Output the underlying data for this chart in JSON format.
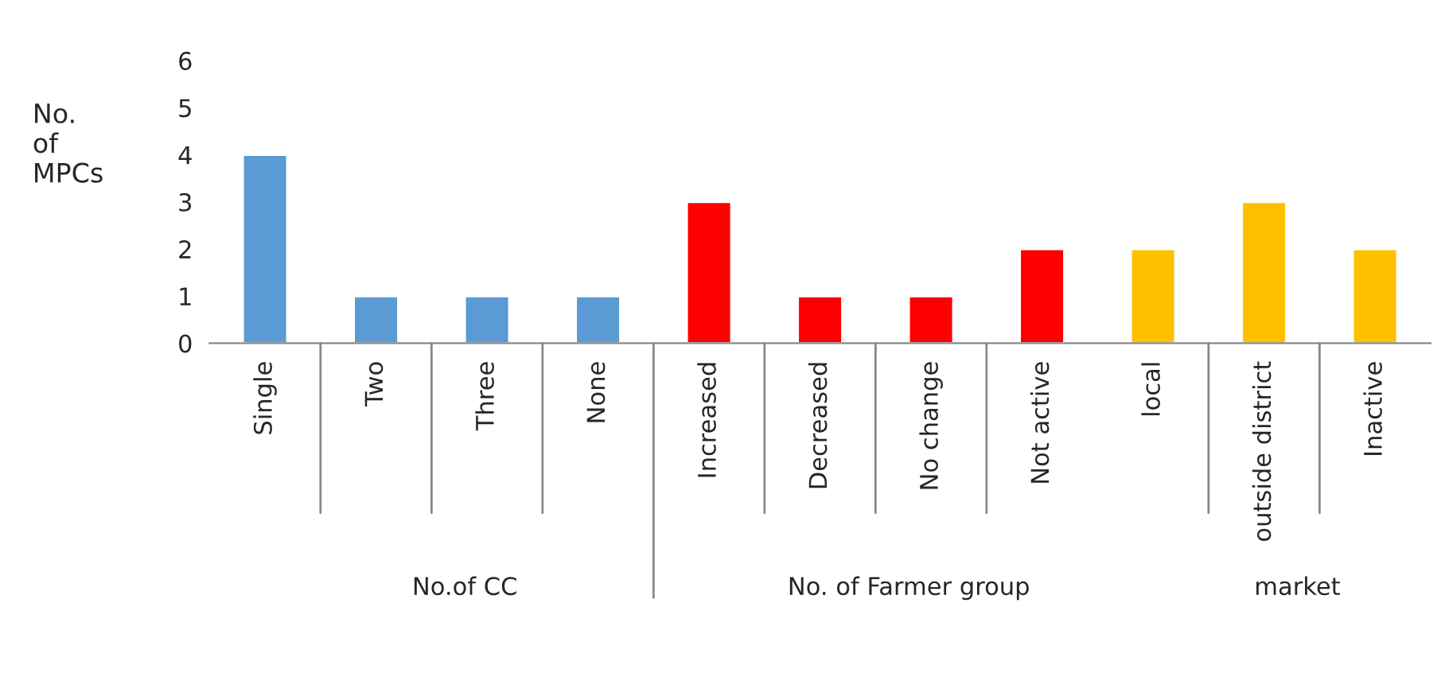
{
  "chart_data": {
    "type": "bar",
    "ylabel": "No.\nof\nMPCs",
    "categories": [
      "Single",
      "Two",
      "Three",
      "None",
      "Increased",
      "Decreased",
      "No change",
      "Not active",
      "local",
      "outside district",
      "Inactive"
    ],
    "values": [
      4,
      1,
      1,
      1,
      3,
      1,
      1,
      2,
      2,
      3,
      2
    ],
    "colors": [
      "#5b9bd5",
      "#5b9bd5",
      "#5b9bd5",
      "#5b9bd5",
      "#ff0000",
      "#ff0000",
      "#ff0000",
      "#ff0000",
      "#ffc000",
      "#ffc000",
      "#ffc000"
    ],
    "ylim": [
      0,
      6
    ],
    "yticks": [
      0,
      1,
      2,
      3,
      4,
      5,
      6
    ],
    "grid": false,
    "annotations": [
      "No.of CC",
      "No. of Farmer group",
      "market"
    ]
  }
}
